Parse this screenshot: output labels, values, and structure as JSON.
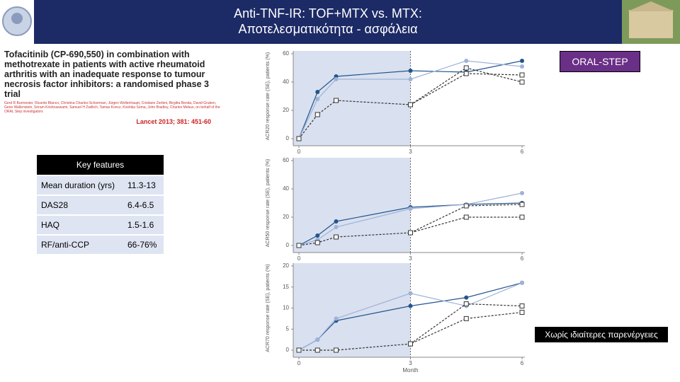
{
  "header": {
    "title": [
      "Anti-TNF-IR: TOF+MTX vs. MTX:",
      "Αποτελεσματικότητα - ασφάλεια"
    ]
  },
  "article": {
    "title": "Tofacitinib (CP-690,550) in combination with methotrexate in patients with active rheumatoid arthritis with an inadequate response to tumour necrosis factor inhibitors: a randomised phase 3 trial",
    "authors": "Gerd R Burmester, Ricardo Blanco, Christina Charles-Schoeman, Jürgen Wollenhaupt, Cristiano Zerbini, Birgitta Benda, David Gruben, Gene Wallenstein, Sriram Krishnaswami, Samuel H Zwillich, Tamas Koncz, Koshika Soma, John Bradley, Charles Mebus, on behalf of the ORAL Step investigators",
    "citation": "Lancet 2013; 381: 451-60"
  },
  "badge": "ORAL-STEP",
  "table": {
    "header": "Key features",
    "rows": [
      [
        "Mean duration (yrs)",
        "11.3-13"
      ],
      [
        "DAS28",
        "6.4-6.5"
      ],
      [
        "HAQ",
        "1.5-1.6"
      ],
      [
        "RF/anti-CCP",
        "66-76%"
      ]
    ]
  },
  "note": "Χωρίς ιδιαίτερες παρενέργειες",
  "chart_data": [
    {
      "type": "line",
      "y_label": "ACR20 response rate (SE), patients (%)",
      "x": [
        0,
        0.5,
        1,
        3,
        4.5,
        6
      ],
      "xlim": [
        0,
        6
      ],
      "xticks": [
        0,
        3,
        6
      ],
      "ylim": [
        0,
        60
      ],
      "yticks": [
        0,
        20,
        40,
        60
      ],
      "series": [
        {
          "color": "#23558c",
          "marker": "circle",
          "dash": false,
          "values": [
            0,
            33,
            44,
            48,
            47,
            55
          ]
        },
        {
          "color": "#9fb2d8",
          "marker": "circle",
          "dash": false,
          "values": [
            0,
            28,
            42,
            42,
            55,
            51
          ]
        },
        {
          "color": "#333333",
          "marker": "square",
          "dash": true,
          "values": [
            0,
            17,
            27,
            24,
            50,
            40
          ]
        },
        {
          "color": "#333333",
          "marker": "square",
          "dash": true,
          "values": [
            null,
            null,
            null,
            24,
            46,
            45
          ]
        }
      ]
    },
    {
      "type": "line",
      "y_label": "ACR50 response rate (SE), patients (%)",
      "x": [
        0,
        0.5,
        1,
        3,
        4.5,
        6
      ],
      "xlim": [
        0,
        6
      ],
      "xticks": [
        0,
        3,
        6
      ],
      "ylim": [
        0,
        60
      ],
      "yticks": [
        0,
        20,
        40,
        60
      ],
      "series": [
        {
          "color": "#23558c",
          "marker": "circle",
          "dash": false,
          "values": [
            0,
            7,
            17,
            27,
            29,
            30
          ]
        },
        {
          "color": "#9fb2d8",
          "marker": "circle",
          "dash": false,
          "values": [
            0,
            4,
            13,
            26,
            29,
            37
          ]
        },
        {
          "color": "#333333",
          "marker": "square",
          "dash": true,
          "values": [
            0,
            2,
            6,
            9,
            20,
            20
          ]
        },
        {
          "color": "#333333",
          "marker": "square",
          "dash": true,
          "values": [
            null,
            null,
            null,
            9,
            28,
            29
          ]
        }
      ]
    },
    {
      "type": "line",
      "y_label": "ACR70 response rate (SE), patients (%)",
      "x_label": "Month",
      "x": [
        0,
        0.5,
        1,
        3,
        4.5,
        6
      ],
      "xlim": [
        0,
        6
      ],
      "xticks": [
        0,
        3,
        6
      ],
      "ylim": [
        0,
        20
      ],
      "yticks": [
        0,
        5,
        10,
        15,
        20
      ],
      "series": [
        {
          "color": "#23558c",
          "marker": "circle",
          "dash": false,
          "values": [
            0,
            2.5,
            7,
            10.5,
            12.5,
            16
          ]
        },
        {
          "color": "#9fb2d8",
          "marker": "circle",
          "dash": false,
          "values": [
            0,
            2.5,
            7.5,
            13.5,
            10.5,
            16
          ]
        },
        {
          "color": "#333333",
          "marker": "square",
          "dash": true,
          "values": [
            0,
            0,
            0,
            1.5,
            7.5,
            9
          ]
        },
        {
          "color": "#333333",
          "marker": "square",
          "dash": true,
          "values": [
            null,
            null,
            null,
            1.5,
            11,
            10.5
          ]
        }
      ]
    }
  ]
}
